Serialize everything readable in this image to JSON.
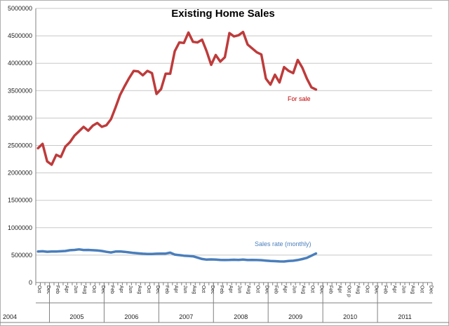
{
  "chart_data": {
    "type": "line",
    "title": "Existing Home Sales",
    "xlabel": "",
    "ylabel": "",
    "ylim": [
      0,
      5000000
    ],
    "y_ticks": [
      0,
      500000,
      1000000,
      1500000,
      2000000,
      2500000,
      3000000,
      3500000,
      4000000,
      4500000,
      5000000
    ],
    "grid": true,
    "legend": "none",
    "x_labels": [
      "Oct",
      "Dec",
      "Feb",
      "Apr",
      "Jun",
      "Aug",
      "Oct",
      "Dec",
      "Feb",
      "Apr",
      "Jun",
      "Aug",
      "Oct",
      "Dec",
      "Feb",
      "Apr",
      "Jun",
      "Aug",
      "Oct",
      "Dec",
      "Feb",
      "Apr",
      "Jun",
      "Aug",
      "Oct",
      "Dec",
      "Feb",
      "Apr",
      "Jun",
      "Aug",
      "Oct",
      "Dec",
      "Feb",
      "Apr",
      "Jun",
      "Aug",
      "Oct",
      "Dec",
      "Feb",
      "Apr",
      "Jun",
      "Aug",
      "Oct",
      "Dec"
    ],
    "x_label_overrides": {
      "34": "Oct p"
    },
    "years": [
      {
        "label": "2004",
        "months": 3
      },
      {
        "label": "2005",
        "months": 12
      },
      {
        "label": "2006",
        "months": 12
      },
      {
        "label": "2007",
        "months": 12
      },
      {
        "label": "2008",
        "months": 12
      },
      {
        "label": "2009",
        "months": 12
      },
      {
        "label": "2010",
        "months": 12
      },
      {
        "label": "2011",
        "months": 12
      }
    ],
    "series": [
      {
        "name": "For sale",
        "color": "#be3b3b",
        "values": [
          2450000,
          2530000,
          2210000,
          2150000,
          2330000,
          2290000,
          2480000,
          2560000,
          2680000,
          2760000,
          2840000,
          2770000,
          2860000,
          2910000,
          2840000,
          2870000,
          2980000,
          3190000,
          3420000,
          3580000,
          3730000,
          3860000,
          3850000,
          3780000,
          3860000,
          3820000,
          3440000,
          3530000,
          3810000,
          3810000,
          4220000,
          4380000,
          4370000,
          4560000,
          4390000,
          4380000,
          4430000,
          4220000,
          3970000,
          4150000,
          4030000,
          4110000,
          4550000,
          4490000,
          4510000,
          4570000,
          4340000,
          4270000,
          4200000,
          4160000,
          3720000,
          3610000,
          3790000,
          3650000,
          3930000,
          3860000,
          3820000,
          4060000,
          3920000,
          3720000,
          3560000,
          3520000
        ]
      },
      {
        "name": "Sales rate (monthly)",
        "color": "#4a7ebb",
        "values": [
          565000,
          570000,
          562000,
          565000,
          565000,
          570000,
          575000,
          590000,
          595000,
          605000,
          593000,
          595000,
          590000,
          585000,
          575000,
          560000,
          548000,
          565000,
          568000,
          560000,
          550000,
          540000,
          532000,
          525000,
          522000,
          522000,
          525000,
          527000,
          528000,
          545000,
          510000,
          500000,
          490000,
          485000,
          478000,
          455000,
          430000,
          418000,
          422000,
          418000,
          412000,
          410000,
          412000,
          415000,
          412000,
          418000,
          410000,
          412000,
          410000,
          408000,
          400000,
          392000,
          390000,
          385000,
          383000,
          392000,
          398000,
          410000,
          428000,
          450000,
          490000,
          530000
        ]
      }
    ],
    "annotations": [
      {
        "text": "For sale",
        "color": "#c00000"
      },
      {
        "text": "Sales rate (monthly)",
        "color": "#4a7ebb"
      }
    ]
  }
}
